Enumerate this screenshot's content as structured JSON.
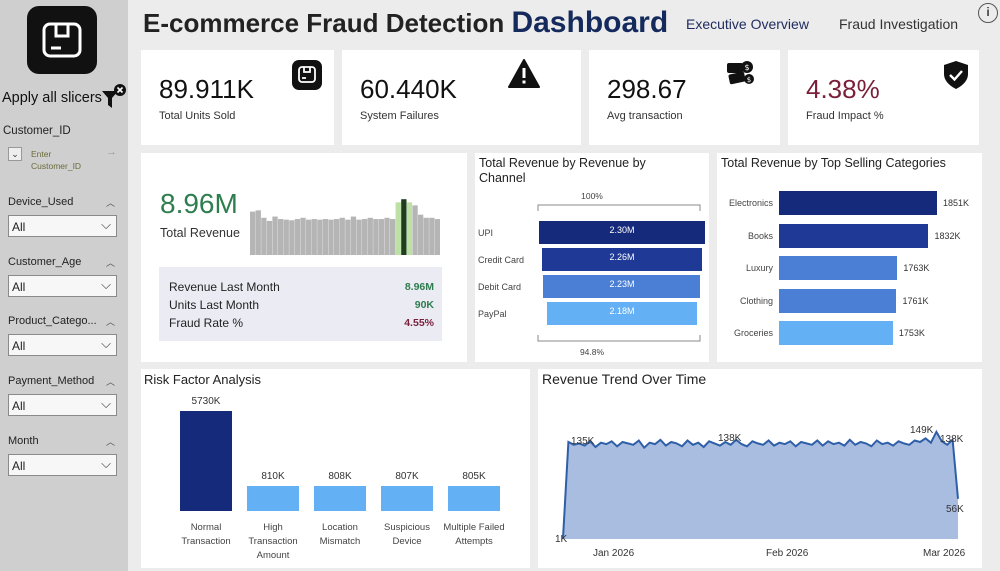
{
  "sidebar": {
    "apply_label": "Apply all slicers",
    "customer_id": {
      "label": "Customer_ID",
      "placeholder": "Enter Customer_ID"
    },
    "slicers": [
      {
        "label": "Device_Used",
        "value": "All"
      },
      {
        "label": "Customer_Age",
        "value": "All"
      },
      {
        "label": "Product_Catego...",
        "value": "All"
      },
      {
        "label": "Payment_Method",
        "value": "All"
      },
      {
        "label": "Month",
        "value": "All"
      }
    ]
  },
  "header": {
    "title": "E-commerce Fraud Detection",
    "title_bold": "Dashboard",
    "nav": [
      "Executive Overview",
      "Fraud Investigation"
    ]
  },
  "kpis": [
    {
      "value": "89.911K",
      "label": "Total Units Sold",
      "icon": "box-icon"
    },
    {
      "value": "60.440K",
      "label": "System Failures",
      "icon": "warning-icon"
    },
    {
      "value": "298.67",
      "label": "Avg transaction",
      "icon": "money-icon"
    },
    {
      "value": "4.38%",
      "label": "Fraud Impact %",
      "icon": "shield-check-icon",
      "color": "#7a1f3a"
    }
  ],
  "revenue_card": {
    "value": "8.96M",
    "label": "Total Revenue",
    "value_color": "#2e7d4f",
    "stats": [
      {
        "label": "Revenue Last Month",
        "value": "8.96M",
        "color": "#2e7d4f"
      },
      {
        "label": "Units Last Month",
        "value": "90K",
        "color": "#2e7d4f"
      },
      {
        "label": "Fraud Rate %",
        "value": "4.55%",
        "color": "#7a1f3a"
      }
    ],
    "sparkline_levels": [
      0.7,
      0.72,
      0.6,
      0.55,
      0.62,
      0.58,
      0.57,
      0.56,
      0.58,
      0.6,
      0.57,
      0.58,
      0.57,
      0.58,
      0.57,
      0.58,
      0.6,
      0.57,
      0.62,
      0.57,
      0.58,
      0.6,
      0.58,
      0.58,
      0.6,
      0.58,
      0.85,
      0.9,
      0.85,
      0.8,
      0.65,
      0.6,
      0.6,
      0.58,
      0.58
    ],
    "sparkline_highlight": [
      26,
      27,
      28
    ]
  },
  "channel": {
    "title": "Total Revenue by Revenue by Channel",
    "top_pct": "100%",
    "bottom_pct": "94.8%",
    "chart_data": {
      "type": "bar",
      "categories": [
        "UPI",
        "Credit Card",
        "Debit Card",
        "PayPal"
      ],
      "values": [
        2.3,
        2.26,
        2.23,
        2.18
      ],
      "labels": [
        "2.30M",
        "2.26M",
        "2.23M",
        "2.18M"
      ],
      "colors": [
        "#152a7a",
        "#1f3a96",
        "#4b7fd6",
        "#64b0f5"
      ]
    }
  },
  "categories_panel": {
    "title": "Total Revenue by Top Selling Categories",
    "chart_data": {
      "type": "bar",
      "categories": [
        "Electronics",
        "Books",
        "Luxury",
        "Clothing",
        "Groceries"
      ],
      "values": [
        1851,
        1832,
        1763,
        1761,
        1753
      ],
      "labels": [
        "1851K",
        "1832K",
        "1763K",
        "1761K",
        "1753K"
      ],
      "colors": [
        "#152a7a",
        "#1f3a96",
        "#4b7fd6",
        "#4b7fd6",
        "#64b0f5"
      ]
    }
  },
  "risk": {
    "title": "Risk Factor Analysis",
    "chart_data": {
      "type": "bar",
      "categories": [
        "Normal Transaction",
        "High Transaction Amount",
        "Location Mismatch",
        "Suspicious Device",
        "Multiple Failed Attempts"
      ],
      "values": [
        5730,
        810,
        808,
        807,
        805
      ],
      "labels": [
        "5730K",
        "810K",
        "808K",
        "807K",
        "805K"
      ],
      "colors": [
        "#152a7a",
        "#64b0f5",
        "#64b0f5",
        "#64b0f5",
        "#64b0f5"
      ]
    }
  },
  "trend": {
    "title": "Revenue Trend Over Time",
    "chart_data": {
      "type": "area",
      "x_labels": [
        "Jan 2026",
        "Feb 2026",
        "Mar 2026"
      ],
      "y_labels": [
        "135K",
        "138K",
        "149K",
        "138K",
        "56K",
        "1K"
      ],
      "values": [
        1,
        135,
        131,
        133,
        130,
        136,
        128,
        134,
        132,
        136,
        129,
        135,
        133,
        131,
        137,
        127,
        134,
        132,
        138,
        130,
        135,
        133,
        129,
        137,
        131,
        134,
        128,
        136,
        133,
        130,
        135,
        131,
        138,
        132,
        129,
        136,
        133,
        131,
        137,
        130,
        134,
        132,
        136,
        129,
        135,
        133,
        131,
        137,
        130,
        136,
        132,
        134,
        130,
        138,
        131,
        135,
        133,
        129,
        137,
        132,
        134,
        130,
        136,
        133,
        131,
        137,
        135,
        140,
        134,
        149,
        136,
        131,
        138,
        56
      ],
      "fill": "#a9bde0",
      "stroke": "#2e5fa8"
    }
  }
}
